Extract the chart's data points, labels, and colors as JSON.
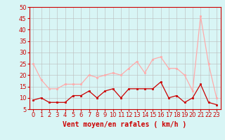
{
  "x": [
    0,
    1,
    2,
    3,
    4,
    5,
    6,
    7,
    8,
    9,
    10,
    11,
    12,
    13,
    14,
    15,
    16,
    17,
    18,
    19,
    20,
    21,
    22,
    23
  ],
  "wind_avg": [
    9,
    10,
    8,
    8,
    8,
    11,
    11,
    13,
    10,
    13,
    14,
    10,
    14,
    14,
    14,
    14,
    17,
    10,
    11,
    8,
    10,
    16,
    8,
    7
  ],
  "wind_gust": [
    25,
    18,
    14,
    14,
    16,
    16,
    16,
    20,
    19,
    20,
    21,
    20,
    23,
    26,
    21,
    27,
    28,
    23,
    23,
    20,
    13,
    46,
    25,
    10
  ],
  "avg_color": "#cc0000",
  "gust_color": "#ffaaaa",
  "bg_color": "#d8f5f5",
  "grid_color": "#bbbbbb",
  "axis_color": "#cc0000",
  "tick_color": "#cc0000",
  "xlabel": "Vent moyen/en rafales ( km/h )",
  "ylim": [
    5,
    50
  ],
  "yticks": [
    5,
    10,
    15,
    20,
    25,
    30,
    35,
    40,
    45,
    50
  ],
  "label_fontsize": 7,
  "tick_fontsize": 6
}
